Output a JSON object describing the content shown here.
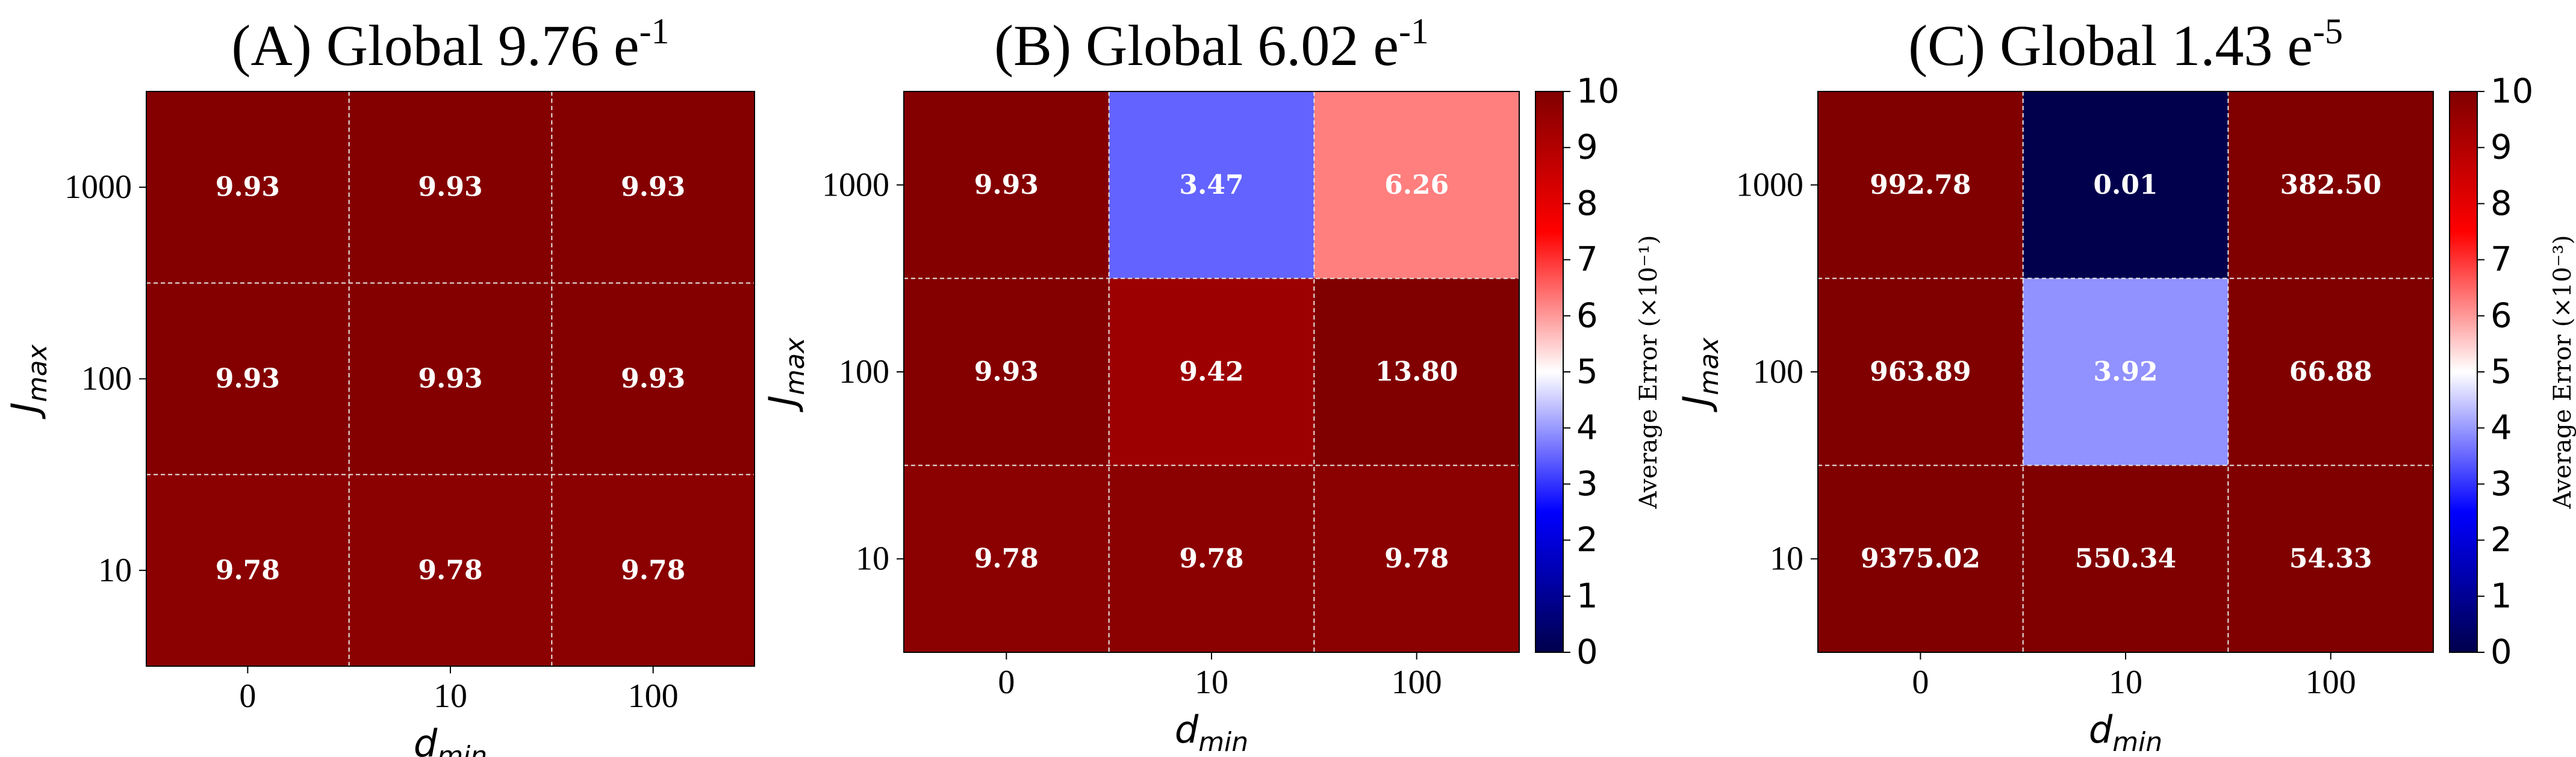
{
  "chart_data": [
    {
      "type": "heatmap",
      "title_main": "(A) Global 9.76 e",
      "title_exp": "-1",
      "xlabel_base": "d",
      "xlabel_sub": "min",
      "ylabel_base": "J",
      "ylabel_sub": "max",
      "x_categories": [
        "0",
        "10",
        "100"
      ],
      "y_categories": [
        "1000",
        "100",
        "10"
      ],
      "values": [
        [
          9.93,
          9.93,
          9.93
        ],
        [
          9.93,
          9.93,
          9.93
        ],
        [
          9.78,
          9.78,
          9.78
        ]
      ],
      "labels": [
        [
          "9.93",
          "9.93",
          "9.93"
        ],
        [
          "9.93",
          "9.93",
          "9.93"
        ],
        [
          "9.78",
          "9.78",
          "9.78"
        ]
      ],
      "colormap": "seismic",
      "vmin": 0,
      "vmax": 10,
      "colorbar": false
    },
    {
      "type": "heatmap",
      "title_main": "(B) Global 6.02 e",
      "title_exp": "-1",
      "xlabel_base": "d",
      "xlabel_sub": "min",
      "ylabel_base": "J",
      "ylabel_sub": "max",
      "x_categories": [
        "0",
        "10",
        "100"
      ],
      "y_categories": [
        "1000",
        "100",
        "10"
      ],
      "values": [
        [
          9.93,
          3.47,
          6.26
        ],
        [
          9.93,
          9.42,
          13.8
        ],
        [
          9.78,
          9.78,
          9.78
        ]
      ],
      "labels": [
        [
          "9.93",
          "3.47",
          "6.26"
        ],
        [
          "9.93",
          "9.42",
          "13.80"
        ],
        [
          "9.78",
          "9.78",
          "9.78"
        ]
      ],
      "colormap": "seismic",
      "vmin": 0,
      "vmax": 10,
      "colorbar": true,
      "colorbar_ticks": [
        "0",
        "1",
        "2",
        "3",
        "4",
        "5",
        "6",
        "7",
        "8",
        "9",
        "10"
      ],
      "colorbar_label": "Average  Error (×10⁻¹)"
    },
    {
      "type": "heatmap",
      "title_main": "(C) Global 1.43 e",
      "title_exp": "-5",
      "xlabel_base": "d",
      "xlabel_sub": "min",
      "ylabel_base": "J",
      "ylabel_sub": "max",
      "x_categories": [
        "0",
        "10",
        "100"
      ],
      "y_categories": [
        "1000",
        "100",
        "10"
      ],
      "values": [
        [
          992.78,
          0.01,
          382.5
        ],
        [
          963.89,
          3.92,
          66.88
        ],
        [
          9375.02,
          550.34,
          54.33
        ]
      ],
      "labels": [
        [
          "992.78",
          "0.01",
          "382.50"
        ],
        [
          "963.89",
          "3.92",
          "66.88"
        ],
        [
          "9375.02",
          "550.34",
          "54.33"
        ]
      ],
      "colormap": "seismic",
      "vmin": 0,
      "vmax": 10,
      "colorbar": true,
      "colorbar_ticks": [
        "0",
        "1",
        "2",
        "3",
        "4",
        "5",
        "6",
        "7",
        "8",
        "9",
        "10"
      ],
      "colorbar_label": "Average  Error (×10⁻³)"
    }
  ]
}
